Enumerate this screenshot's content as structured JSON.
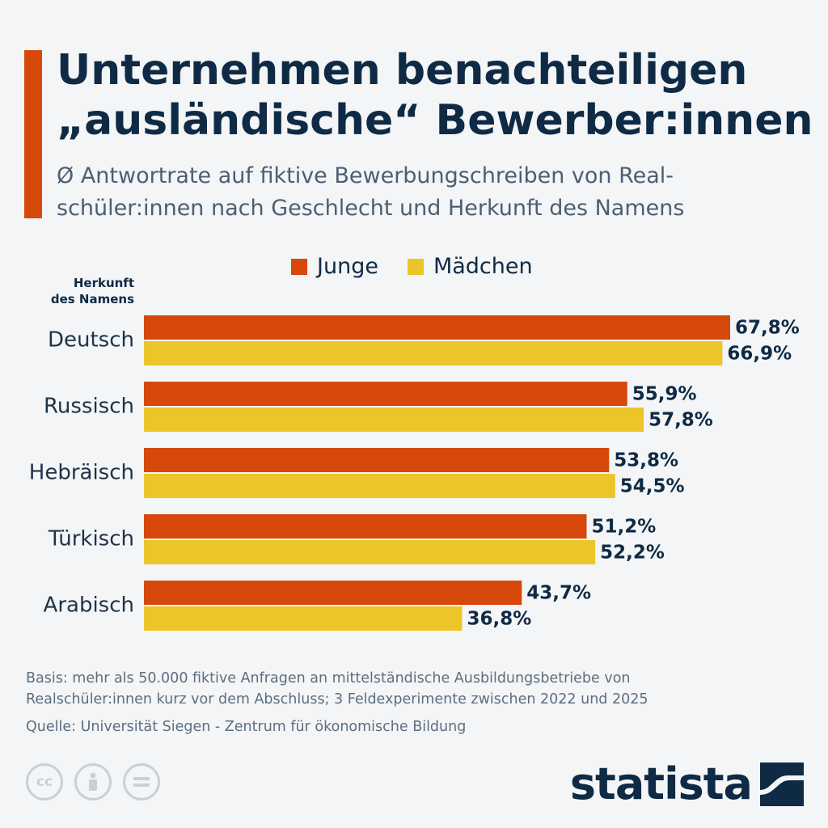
{
  "header": {
    "title_line1": "Unternehmen benachteiligen",
    "title_line2": "„ausländische“ Bewerber:innen",
    "subtitle_line1": "Ø Antwortrate auf fiktive Bewerbungschreiben von Real-",
    "subtitle_line2": "schüler:innen nach Geschlecht und Herkunft des Namens"
  },
  "axis_title": {
    "line1": "Herkunft",
    "line2": "des Namens"
  },
  "colors": {
    "junge": "#d7480b",
    "maedchen": "#ecc52b",
    "accent": "#d7480b",
    "text": "#0f2a44"
  },
  "chart_data": {
    "type": "bar",
    "orientation": "horizontal",
    "title": "Unternehmen benachteiligen „ausländische“ Bewerber:innen",
    "subtitle": "Ø Antwortrate auf fiktive Bewerbungschreiben von Realschüler:innen nach Geschlecht und Herkunft des Namens",
    "ylabel": "Herkunft des Namens",
    "categories": [
      "Deutsch",
      "Russisch",
      "Hebräisch",
      "Türkisch",
      "Arabisch"
    ],
    "series": [
      {
        "name": "Junge",
        "values": [
          67.8,
          55.9,
          53.8,
          51.2,
          43.7
        ],
        "labels": [
          "67,8%",
          "55,9%",
          "53,8%",
          "51,2%",
          "43,7%"
        ]
      },
      {
        "name": "Mädchen",
        "values": [
          66.9,
          57.8,
          54.5,
          52.2,
          36.8
        ],
        "labels": [
          "66,9%",
          "57,8%",
          "54,5%",
          "52,2%",
          "36,8%"
        ]
      }
    ],
    "xlim": [
      0,
      67.8
    ],
    "legend": "top",
    "grid": false
  },
  "footer": {
    "basis_line1": "Basis: mehr als 50.000 fiktive Anfragen an mittelständische Ausbildungsbetriebe von",
    "basis_line2": "Realschüler:innen kurz vor dem Abschluss; 3 Feldexperimente zwischen 2022 und 2025",
    "source": "Quelle: Universität Siegen - Zentrum für ökonomische Bildung",
    "cc_icons": [
      "cc-icon",
      "person-icon",
      "equals-icon"
    ],
    "brand": "statista"
  }
}
